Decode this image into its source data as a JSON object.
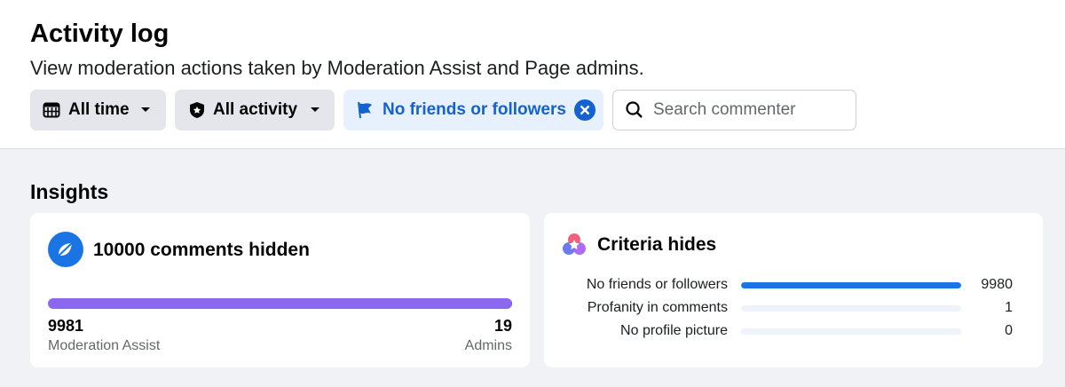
{
  "header": {
    "title": "Activity log",
    "subtitle": "View moderation actions taken by Moderation Assist and Page admins."
  },
  "filters": [
    "All time",
    "All activity",
    "No friends or followers"
  ],
  "search_placeholder": "Search commenter",
  "insights": {
    "title": "Insights",
    "hidden": {
      "count": 10000,
      "label": "comments hidden",
      "breakdown": [
        {
          "value": 9981,
          "label": "Moderation Assist"
        },
        {
          "value": 19,
          "label": "Admins"
        }
      ]
    },
    "criteria": {
      "title": "Criteria hides",
      "rows": [
        {
          "label": "No friends or followers",
          "value": 9980
        },
        {
          "label": "Profanity in comments",
          "value": 1
        },
        {
          "label": "No profile picture",
          "value": 0
        }
      ]
    }
  }
}
